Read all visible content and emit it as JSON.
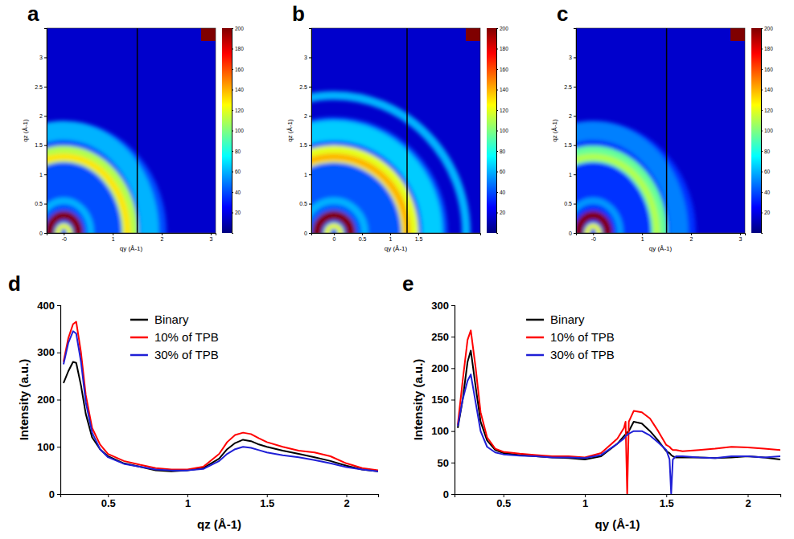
{
  "chart_data": [
    {
      "type": "heatmap",
      "panel_label": "a",
      "x_label": "qy (Å-1)",
      "y_label": "qz (Å-1)",
      "xlim": [
        -0.35,
        3.1
      ],
      "ylim": [
        0,
        3.5
      ],
      "xticks": [
        {
          "value": 0,
          "label": "-0"
        },
        1,
        2,
        3
      ],
      "yticks": [
        0,
        0.5,
        1,
        1.5,
        2,
        2.5,
        3
      ],
      "background": 15,
      "rings": [
        {
          "q": 1.0,
          "width": 2.0,
          "intensity": 40
        },
        {
          "q": 1.75,
          "width": 0.35,
          "intensity": 60
        },
        {
          "q": 1.35,
          "width": 0.3,
          "intensity": 110
        },
        {
          "q": 1.3,
          "width": 0.12,
          "intensity": 130
        },
        {
          "q": 0.55,
          "width": 0.12,
          "intensity": 60
        },
        {
          "q": 0.3,
          "width": 0.16,
          "intensity": 200
        },
        {
          "q": 0.12,
          "width": 0.1,
          "intensity": 120
        }
      ],
      "gap_qy": 1.5,
      "colorbar": {
        "range": [
          0,
          200
        ],
        "ticks": [
          20,
          40,
          60,
          80,
          100,
          120,
          140,
          160,
          180,
          200
        ]
      }
    },
    {
      "type": "heatmap",
      "panel_label": "b",
      "x_label": "qy (Å-1)",
      "y_label": "qz (Å-1)",
      "xlim": [
        -0.4,
        2.6
      ],
      "ylim": [
        0,
        3.5
      ],
      "xticks": [
        0,
        0.5,
        1,
        1.5
      ],
      "yticks": [
        0,
        0.5,
        1,
        1.5,
        2,
        2.5,
        3
      ],
      "background": 15,
      "rings": [
        {
          "q": 1.0,
          "width": 2.0,
          "intensity": 42
        },
        {
          "q": 2.35,
          "width": 0.15,
          "intensity": 60
        },
        {
          "q": 1.75,
          "width": 0.35,
          "intensity": 65
        },
        {
          "q": 1.35,
          "width": 0.3,
          "intensity": 120
        },
        {
          "q": 1.3,
          "width": 0.12,
          "intensity": 140
        },
        {
          "q": 0.55,
          "width": 0.12,
          "intensity": 60
        },
        {
          "q": 0.3,
          "width": 0.16,
          "intensity": 200
        },
        {
          "q": 0.12,
          "width": 0.1,
          "intensity": 120
        }
      ],
      "gap_qy": 1.3,
      "colorbar": {
        "range": [
          0,
          200
        ],
        "ticks": [
          20,
          40,
          60,
          80,
          100,
          120,
          140,
          160,
          180,
          200
        ]
      }
    },
    {
      "type": "heatmap",
      "panel_label": "c",
      "x_label": "qy (Å-1)",
      "y_label": "qz (Å-1)",
      "xlim": [
        -0.35,
        3.1
      ],
      "ylim": [
        0,
        3.5
      ],
      "xticks": [
        {
          "value": 0,
          "label": "-0"
        },
        1,
        2,
        3
      ],
      "yticks": [
        0,
        0.5,
        1,
        1.5,
        2,
        2.5,
        3
      ],
      "background": 15,
      "rings": [
        {
          "q": 1.0,
          "width": 2.0,
          "intensity": 35
        },
        {
          "q": 1.75,
          "width": 0.35,
          "intensity": 50
        },
        {
          "q": 1.35,
          "width": 0.3,
          "intensity": 95
        },
        {
          "q": 1.3,
          "width": 0.12,
          "intensity": 110
        },
        {
          "q": 0.55,
          "width": 0.12,
          "intensity": 55
        },
        {
          "q": 0.3,
          "width": 0.16,
          "intensity": 200
        },
        {
          "q": 0.12,
          "width": 0.1,
          "intensity": 120
        }
      ],
      "gap_qy": 1.5,
      "colorbar": {
        "range": [
          0,
          200
        ],
        "ticks": [
          20,
          40,
          60,
          80,
          100,
          120,
          140,
          160,
          180,
          200
        ]
      }
    },
    {
      "type": "line",
      "panel_label": "d",
      "x_label": "qz (Å-1)",
      "y_label": "Intensity (a.u.)",
      "x": [
        0.22,
        0.25,
        0.28,
        0.3,
        0.33,
        0.36,
        0.4,
        0.45,
        0.5,
        0.6,
        0.7,
        0.8,
        0.9,
        1.0,
        1.1,
        1.2,
        1.25,
        1.3,
        1.35,
        1.4,
        1.45,
        1.5,
        1.6,
        1.7,
        1.8,
        1.9,
        2.0,
        2.1,
        2.2
      ],
      "series": [
        {
          "name": "Binary",
          "color": "#000000",
          "values": [
            235,
            260,
            280,
            278,
            230,
            170,
            120,
            95,
            80,
            65,
            58,
            50,
            48,
            50,
            55,
            75,
            95,
            108,
            115,
            112,
            105,
            100,
            92,
            85,
            78,
            70,
            60,
            52,
            48
          ]
        },
        {
          "name": "10% of TPB",
          "color": "#ff0000",
          "values": [
            280,
            330,
            360,
            365,
            300,
            210,
            140,
            105,
            85,
            70,
            62,
            55,
            52,
            52,
            58,
            85,
            110,
            125,
            130,
            127,
            118,
            110,
            100,
            92,
            88,
            80,
            65,
            55,
            50
          ]
        },
        {
          "name": "30% of TPB",
          "color": "#1f1fd6",
          "values": [
            275,
            320,
            345,
            340,
            280,
            195,
            130,
            95,
            78,
            64,
            58,
            52,
            50,
            50,
            53,
            70,
            85,
            95,
            100,
            98,
            93,
            88,
            82,
            78,
            72,
            65,
            57,
            52,
            48
          ]
        }
      ],
      "xlim": [
        0.2,
        2.2
      ],
      "xticks": [
        0.5,
        1,
        1.5,
        2
      ],
      "ylim": [
        0,
        400
      ],
      "yticks": [
        0,
        100,
        200,
        300,
        400
      ],
      "legend": "upper center"
    },
    {
      "type": "line",
      "panel_label": "e",
      "x_label": "qy (Å-1)",
      "y_label": "Intensity (a.u.)",
      "x": [
        0.22,
        0.25,
        0.28,
        0.3,
        0.33,
        0.36,
        0.4,
        0.45,
        0.5,
        0.6,
        0.7,
        0.8,
        0.9,
        1.0,
        1.1,
        1.2,
        1.24,
        1.25,
        1.26,
        1.27,
        1.3,
        1.35,
        1.4,
        1.45,
        1.5,
        1.52,
        1.53,
        1.54,
        1.56,
        1.6,
        1.7,
        1.8,
        1.9,
        2.0,
        2.1,
        2.2
      ],
      "series": [
        {
          "name": "Binary",
          "color": "#000000",
          "values": [
            105,
            150,
            210,
            228,
            170,
            115,
            85,
            70,
            65,
            62,
            60,
            58,
            57,
            55,
            60,
            80,
            92,
            95,
            98,
            100,
            115,
            112,
            100,
            85,
            68,
            65,
            62,
            60,
            58,
            58,
            58,
            57,
            58,
            60,
            58,
            55
          ]
        },
        {
          "name": "10% of TPB",
          "color": "#ff0000",
          "values": [
            110,
            180,
            245,
            260,
            200,
            130,
            90,
            72,
            67,
            64,
            62,
            60,
            60,
            58,
            65,
            88,
            105,
            115,
            0,
            115,
            132,
            130,
            120,
            100,
            78,
            75,
            72,
            70,
            70,
            68,
            70,
            72,
            75,
            74,
            72,
            70
          ]
        },
        {
          "name": "30% of TPB",
          "color": "#1f1fd6",
          "values": [
            108,
            150,
            180,
            190,
            145,
            100,
            75,
            66,
            63,
            61,
            60,
            58,
            58,
            57,
            62,
            80,
            88,
            92,
            94,
            96,
            100,
            100,
            93,
            82,
            70,
            55,
            0,
            55,
            60,
            60,
            58,
            57,
            60,
            60,
            58,
            60
          ]
        }
      ],
      "xlim": [
        0.2,
        2.2
      ],
      "xticks": [
        0.5,
        1,
        1.5,
        2
      ],
      "ylim": [
        0,
        300
      ],
      "yticks": [
        0,
        50,
        100,
        150,
        200,
        250,
        300
      ],
      "legend": "upper center"
    }
  ]
}
